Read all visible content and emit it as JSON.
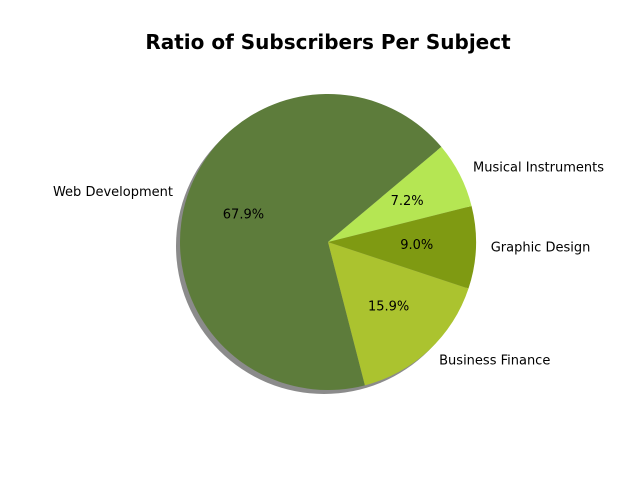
{
  "chart_data": {
    "type": "pie",
    "title": "Ratio of Subscribers Per Subject",
    "start_angle_deg": 40,
    "shadow": true,
    "slices": [
      {
        "label": "Web Development",
        "value": 67.9,
        "pct_label": "67.9%",
        "color": "#5d7c3b"
      },
      {
        "label": "Business Finance",
        "value": 15.9,
        "pct_label": "15.9%",
        "color": "#abc32f"
      },
      {
        "label": "Graphic Design",
        "value": 9.0,
        "pct_label": "9.0%",
        "color": "#7f9a12"
      },
      {
        "label": "Musical Instruments",
        "value": 7.2,
        "pct_label": "7.2%",
        "color": "#b5e653"
      }
    ]
  }
}
